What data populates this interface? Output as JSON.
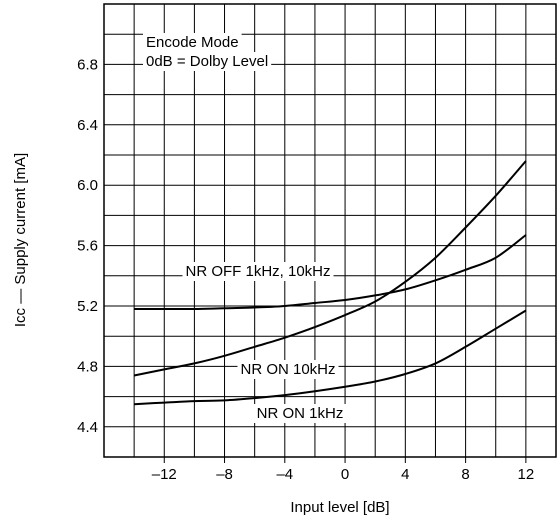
{
  "chart_data": {
    "type": "line",
    "title": "",
    "xlabel": "Input level   [dB]",
    "ylabel": "Icc — Supply current  [mA]",
    "xlim": [
      -16,
      14
    ],
    "ylim": [
      4.2,
      7.2
    ],
    "x_ticks": [
      -12,
      -8,
      -4,
      0,
      4,
      8,
      12
    ],
    "x_tick_labels": [
      "–12",
      "–8",
      "–4",
      "0",
      "4",
      "8",
      "12"
    ],
    "y_ticks": [
      4.4,
      4.8,
      5.2,
      5.6,
      6.0,
      6.4,
      6.8
    ],
    "y_tick_labels": [
      "4.4",
      "4.8",
      "5.2",
      "5.6",
      "6.0",
      "6.4",
      "6.8"
    ],
    "grid": true,
    "annotation": [
      "Encode Mode",
      "0dB = Dolby Level"
    ],
    "series": [
      {
        "name": "NR OFF 1kHz, 10kHz",
        "x": [
          -14,
          -12,
          -10,
          -8,
          -6,
          -4,
          -2,
          0,
          2,
          4,
          6,
          8,
          10,
          12
        ],
        "y": [
          5.18,
          5.18,
          5.18,
          5.185,
          5.19,
          5.2,
          5.22,
          5.24,
          5.27,
          5.31,
          5.37,
          5.44,
          5.52,
          5.67
        ]
      },
      {
        "name": "NR ON 10kHz",
        "x": [
          -14,
          -12,
          -10,
          -8,
          -6,
          -4,
          -2,
          0,
          2,
          4,
          6,
          8,
          10,
          12
        ],
        "y": [
          4.74,
          4.78,
          4.82,
          4.87,
          4.93,
          4.99,
          5.06,
          5.14,
          5.23,
          5.36,
          5.52,
          5.72,
          5.93,
          6.16
        ]
      },
      {
        "name": "NR ON 1kHz",
        "x": [
          -14,
          -12,
          -10,
          -8,
          -6,
          -4,
          -2,
          0,
          2,
          4,
          6,
          8,
          10,
          12
        ],
        "y": [
          4.55,
          4.56,
          4.57,
          4.575,
          4.59,
          4.61,
          4.635,
          4.665,
          4.7,
          4.75,
          4.82,
          4.93,
          5.05,
          5.17
        ]
      }
    ]
  }
}
